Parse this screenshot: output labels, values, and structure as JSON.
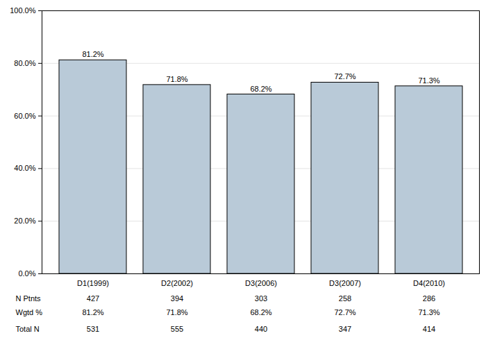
{
  "chart_data": {
    "type": "bar",
    "categories": [
      "D1(1999)",
      "D2(2002)",
      "D3(2006)",
      "D3(2007)",
      "D4(2010)"
    ],
    "values": [
      81.2,
      71.8,
      68.2,
      72.7,
      71.3
    ],
    "value_labels": [
      "81.2%",
      "71.8%",
      "68.2%",
      "72.7%",
      "71.3%"
    ],
    "data_labels": true,
    "color": "#b9cad8",
    "ylim": [
      0,
      100
    ],
    "yticks": [
      {
        "value": 0,
        "label": "0.0%"
      },
      {
        "value": 20,
        "label": "20.0%"
      },
      {
        "value": 40,
        "label": "40.0%"
      },
      {
        "value": 60,
        "label": "60.0%"
      },
      {
        "value": 80,
        "label": "80.0%"
      },
      {
        "value": 100,
        "label": "100.0%"
      }
    ],
    "grid": true
  },
  "table": {
    "rows": [
      {
        "label": "N Ptnts",
        "values": [
          427,
          394,
          303,
          258,
          286
        ]
      },
      {
        "label": "Wgtd %",
        "values": [
          "81.2%",
          "71.8%",
          "68.2%",
          "72.7%",
          "71.3%"
        ]
      },
      {
        "label": "Total N",
        "values": [
          531,
          555,
          440,
          347,
          414
        ]
      }
    ]
  }
}
